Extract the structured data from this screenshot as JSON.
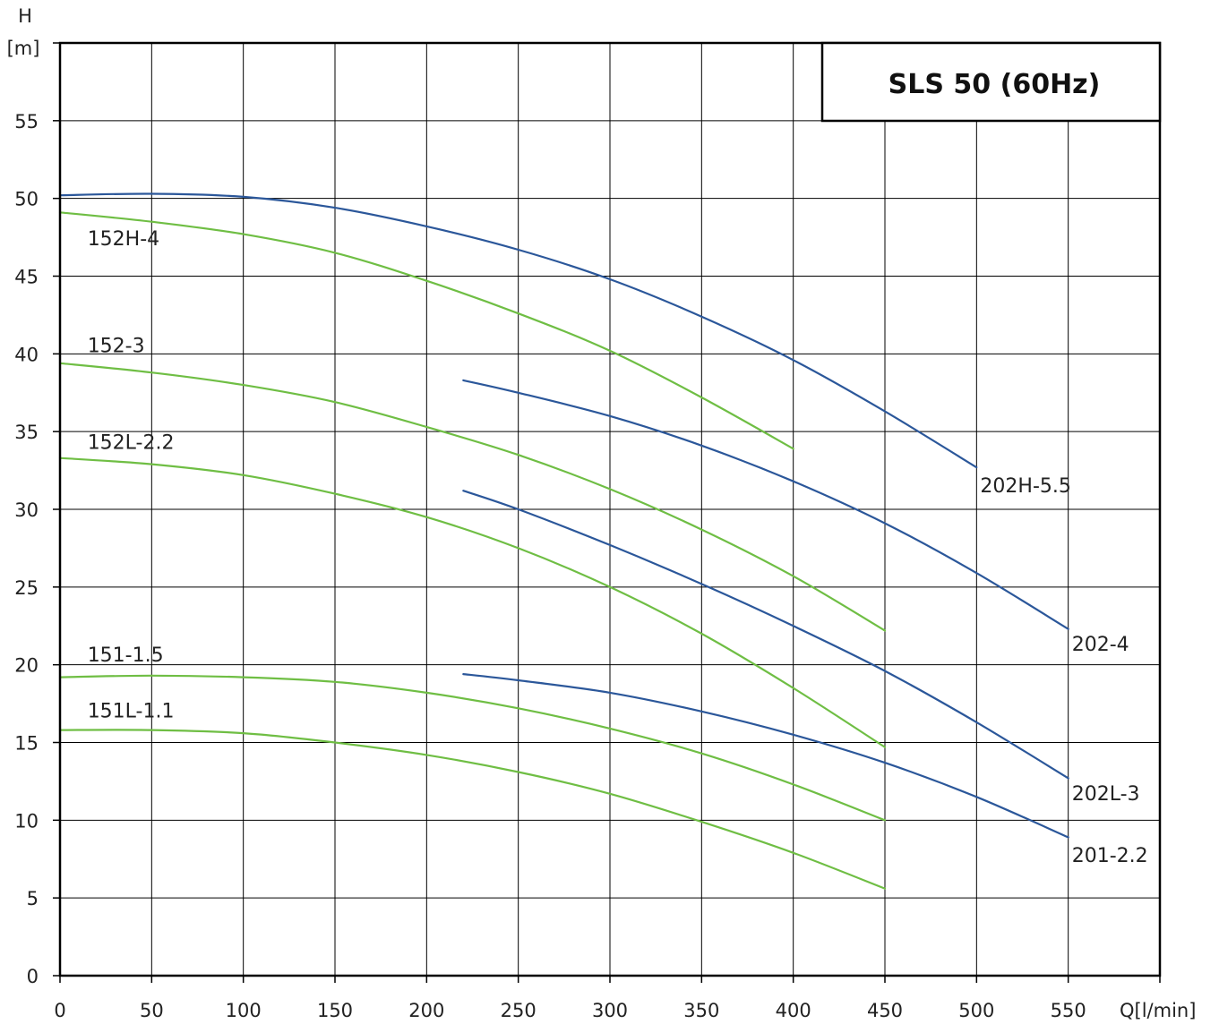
{
  "chart_data": {
    "type": "line",
    "title": "SLS 50 (60Hz)",
    "xlabel": "Q[l/min]",
    "ylabel_lines": [
      "H",
      "[m]"
    ],
    "xlim": [
      0,
      600
    ],
    "ylim": [
      0,
      60
    ],
    "xticks": [
      0,
      50,
      100,
      150,
      200,
      250,
      300,
      350,
      400,
      450,
      500,
      550
    ],
    "yticks": [
      0,
      5,
      10,
      15,
      20,
      25,
      30,
      35,
      40,
      45,
      50,
      55
    ],
    "grid": true,
    "colors": {
      "green": "#6fbe44",
      "blue": "#2b579a"
    },
    "series": [
      {
        "name": "152H-4",
        "color": "green",
        "label_at": [
          15,
          47
        ],
        "points": [
          [
            0,
            49.1
          ],
          [
            50,
            48.5
          ],
          [
            100,
            47.7
          ],
          [
            150,
            46.5
          ],
          [
            200,
            44.7
          ],
          [
            250,
            42.6
          ],
          [
            300,
            40.2
          ],
          [
            350,
            37.2
          ],
          [
            400,
            33.9
          ]
        ]
      },
      {
        "name": "152-3",
        "color": "green",
        "label_at": [
          15,
          40.1
        ],
        "points": [
          [
            0,
            39.4
          ],
          [
            50,
            38.8
          ],
          [
            100,
            38.0
          ],
          [
            150,
            36.9
          ],
          [
            200,
            35.3
          ],
          [
            250,
            33.5
          ],
          [
            300,
            31.3
          ],
          [
            350,
            28.7
          ],
          [
            400,
            25.7
          ],
          [
            450,
            22.2
          ]
        ]
      },
      {
        "name": "152L-2.2",
        "color": "green",
        "label_at": [
          15,
          33.9
        ],
        "points": [
          [
            0,
            33.3
          ],
          [
            50,
            32.9
          ],
          [
            100,
            32.2
          ],
          [
            150,
            31.0
          ],
          [
            200,
            29.5
          ],
          [
            250,
            27.5
          ],
          [
            300,
            25.0
          ],
          [
            350,
            22.0
          ],
          [
            400,
            18.5
          ],
          [
            450,
            14.7
          ]
        ]
      },
      {
        "name": "151-1.5",
        "color": "green",
        "label_at": [
          15,
          20.2
        ],
        "points": [
          [
            0,
            19.2
          ],
          [
            50,
            19.3
          ],
          [
            100,
            19.2
          ],
          [
            150,
            18.9
          ],
          [
            200,
            18.2
          ],
          [
            250,
            17.2
          ],
          [
            300,
            15.9
          ],
          [
            350,
            14.3
          ],
          [
            400,
            12.3
          ],
          [
            450,
            10.0
          ]
        ]
      },
      {
        "name": "151L-1.1",
        "color": "green",
        "label_at": [
          15,
          16.6
        ],
        "points": [
          [
            0,
            15.8
          ],
          [
            50,
            15.8
          ],
          [
            100,
            15.6
          ],
          [
            150,
            15.0
          ],
          [
            200,
            14.2
          ],
          [
            250,
            13.1
          ],
          [
            300,
            11.7
          ],
          [
            350,
            9.9
          ],
          [
            400,
            7.9
          ],
          [
            450,
            5.6
          ]
        ]
      },
      {
        "name": "202H-5.5",
        "color": "blue",
        "label_at": [
          502,
          31.1
        ],
        "points": [
          [
            0,
            50.2
          ],
          [
            50,
            50.3
          ],
          [
            100,
            50.1
          ],
          [
            150,
            49.4
          ],
          [
            200,
            48.2
          ],
          [
            250,
            46.7
          ],
          [
            300,
            44.8
          ],
          [
            350,
            42.4
          ],
          [
            400,
            39.6
          ],
          [
            450,
            36.3
          ],
          [
            500,
            32.7
          ]
        ]
      },
      {
        "name": "202-4",
        "color": "blue",
        "label_at": [
          552,
          20.9
        ],
        "points": [
          [
            220,
            38.3
          ],
          [
            250,
            37.5
          ],
          [
            300,
            36.0
          ],
          [
            350,
            34.1
          ],
          [
            400,
            31.8
          ],
          [
            450,
            29.1
          ],
          [
            500,
            25.9
          ],
          [
            550,
            22.3
          ]
        ]
      },
      {
        "name": "202L-3",
        "color": "blue",
        "label_at": [
          552,
          11.3
        ],
        "points": [
          [
            220,
            31.2
          ],
          [
            250,
            30.0
          ],
          [
            300,
            27.7
          ],
          [
            350,
            25.2
          ],
          [
            400,
            22.5
          ],
          [
            450,
            19.6
          ],
          [
            500,
            16.3
          ],
          [
            550,
            12.7
          ]
        ]
      },
      {
        "name": "201-2.2",
        "color": "blue",
        "label_at": [
          552,
          7.3
        ],
        "points": [
          [
            220,
            19.4
          ],
          [
            250,
            19.0
          ],
          [
            300,
            18.2
          ],
          [
            350,
            17.0
          ],
          [
            400,
            15.5
          ],
          [
            450,
            13.7
          ],
          [
            500,
            11.5
          ],
          [
            550,
            8.9
          ]
        ]
      }
    ]
  }
}
